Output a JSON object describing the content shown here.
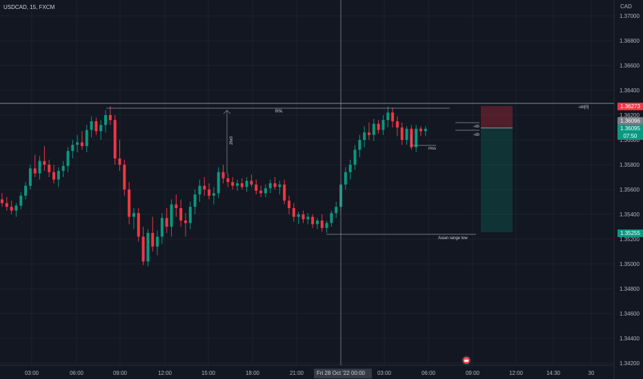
{
  "header": {
    "symbol_line": "USDCAD, 15, FXCM",
    "currency": "CAD"
  },
  "chart_data": {
    "type": "candlestick",
    "title": "USDCAD, 15, FXCM",
    "ylim": [
      1.342,
      1.3712
    ],
    "ylabel": "CAD",
    "y_ticks": [
      "1.37000",
      "1.36800",
      "1.36600",
      "1.36400",
      "1.36200",
      "1.36000",
      "1.35800",
      "1.35600",
      "1.35400",
      "1.35200",
      "1.35000",
      "1.34800",
      "1.34600",
      "1.34400",
      "1.34200"
    ],
    "x_ticks": [
      "03:00",
      "06:00",
      "09:00",
      "12:00",
      "15:00",
      "18:00",
      "21:00",
      "Fri 28 Oct '22",
      "03:00",
      "06:00",
      "09:00",
      "12:00",
      "14:30",
      "30"
    ],
    "price_tags": [
      {
        "label": "1.36273",
        "color": "#f23645"
      },
      {
        "label": "1.36096",
        "color": "#787b86"
      },
      {
        "label": "1.36095",
        "sub": "07:50",
        "color": "#089981"
      },
      {
        "label": "1.35255",
        "color": "#089981"
      }
    ],
    "crosshair_label": "Fri 28 Oct '22  00:00",
    "annotations": [
      "BSL",
      "-ob[0]",
      "-ob",
      "-ob",
      "mss",
      "Asian range low",
      "2hr0"
    ],
    "bullish_color": "#089981",
    "bearish_color": "#f23645",
    "candles_ohlc": [
      [
        1.3552,
        1.3557,
        1.3546,
        1.3549
      ],
      [
        1.3549,
        1.3554,
        1.3543,
        1.3546
      ],
      [
        1.3546,
        1.3551,
        1.354,
        1.3543
      ],
      [
        1.3543,
        1.3549,
        1.3538,
        1.3547
      ],
      [
        1.3547,
        1.3558,
        1.3544,
        1.3555
      ],
      [
        1.3555,
        1.3566,
        1.3552,
        1.3563
      ],
      [
        1.3563,
        1.358,
        1.356,
        1.3577
      ],
      [
        1.3577,
        1.3588,
        1.357,
        1.3573
      ],
      [
        1.3573,
        1.3587,
        1.3568,
        1.3583
      ],
      [
        1.3583,
        1.3595,
        1.3575,
        1.358
      ],
      [
        1.358,
        1.3584,
        1.357,
        1.3574
      ],
      [
        1.3574,
        1.358,
        1.3565,
        1.3568
      ],
      [
        1.3568,
        1.3578,
        1.3562,
        1.3575
      ],
      [
        1.3575,
        1.3583,
        1.357,
        1.3579
      ],
      [
        1.3579,
        1.3594,
        1.3574,
        1.3591
      ],
      [
        1.3591,
        1.36,
        1.3585,
        1.3596
      ],
      [
        1.3596,
        1.3604,
        1.359,
        1.3598
      ],
      [
        1.3598,
        1.3607,
        1.3592,
        1.3595
      ],
      [
        1.3595,
        1.3612,
        1.359,
        1.3608
      ],
      [
        1.3608,
        1.3619,
        1.3602,
        1.3615
      ],
      [
        1.3615,
        1.3618,
        1.3604,
        1.3607
      ],
      [
        1.3607,
        1.3616,
        1.36,
        1.3612
      ],
      [
        1.3612,
        1.3624,
        1.3606,
        1.362
      ],
      [
        1.362,
        1.3627,
        1.3612,
        1.3616
      ],
      [
        1.3616,
        1.362,
        1.358,
        1.3585
      ],
      [
        1.3585,
        1.36,
        1.3575,
        1.358
      ],
      [
        1.358,
        1.3584,
        1.3555,
        1.356
      ],
      [
        1.356,
        1.3566,
        1.3532,
        1.3538
      ],
      [
        1.3538,
        1.3545,
        1.3528,
        1.3541
      ],
      [
        1.3541,
        1.3545,
        1.3518,
        1.3522
      ],
      [
        1.3522,
        1.353,
        1.3499,
        1.3502
      ],
      [
        1.3502,
        1.3528,
        1.3498,
        1.3525
      ],
      [
        1.3525,
        1.3538,
        1.351,
        1.3514
      ],
      [
        1.3514,
        1.3527,
        1.3507,
        1.3522
      ],
      [
        1.3522,
        1.3541,
        1.3516,
        1.3537
      ],
      [
        1.3537,
        1.3545,
        1.3525,
        1.353
      ],
      [
        1.353,
        1.3552,
        1.3522,
        1.3548
      ],
      [
        1.3548,
        1.3556,
        1.3538,
        1.3545
      ],
      [
        1.3545,
        1.3552,
        1.353,
        1.3535
      ],
      [
        1.3535,
        1.3541,
        1.3522,
        1.3533
      ],
      [
        1.3533,
        1.355,
        1.3528,
        1.3546
      ],
      [
        1.3546,
        1.356,
        1.354,
        1.3556
      ],
      [
        1.3556,
        1.3568,
        1.355,
        1.3563
      ],
      [
        1.3563,
        1.357,
        1.3555,
        1.356
      ],
      [
        1.356,
        1.3565,
        1.3552,
        1.3555
      ],
      [
        1.3555,
        1.3562,
        1.3548,
        1.3557
      ],
      [
        1.3557,
        1.3578,
        1.3553,
        1.3574
      ],
      [
        1.3574,
        1.358,
        1.3565,
        1.3569
      ],
      [
        1.3569,
        1.3573,
        1.3562,
        1.3566
      ],
      [
        1.3566,
        1.357,
        1.356,
        1.3563
      ],
      [
        1.3563,
        1.3568,
        1.3559,
        1.3565
      ],
      [
        1.3565,
        1.3569,
        1.356,
        1.3562
      ],
      [
        1.3562,
        1.357,
        1.3558,
        1.3567
      ],
      [
        1.3567,
        1.3572,
        1.3562,
        1.3564
      ],
      [
        1.3564,
        1.3568,
        1.3556,
        1.3559
      ],
      [
        1.3559,
        1.3563,
        1.3554,
        1.3557
      ],
      [
        1.3557,
        1.3564,
        1.3554,
        1.3561
      ],
      [
        1.3561,
        1.3568,
        1.3557,
        1.3565
      ],
      [
        1.3565,
        1.357,
        1.356,
        1.3562
      ],
      [
        1.3562,
        1.3567,
        1.3556,
        1.3564
      ],
      [
        1.3564,
        1.3568,
        1.3548,
        1.3551
      ],
      [
        1.3551,
        1.3555,
        1.354,
        1.3545
      ],
      [
        1.3545,
        1.3549,
        1.3534,
        1.3538
      ],
      [
        1.3538,
        1.3542,
        1.3532,
        1.354
      ],
      [
        1.354,
        1.3543,
        1.3533,
        1.3536
      ],
      [
        1.3536,
        1.3541,
        1.3532,
        1.3538
      ],
      [
        1.3538,
        1.354,
        1.3529,
        1.3532
      ],
      [
        1.3532,
        1.3537,
        1.3528,
        1.3535
      ],
      [
        1.3535,
        1.354,
        1.3526,
        1.3529
      ],
      [
        1.3529,
        1.3535,
        1.3525,
        1.3533
      ],
      [
        1.3533,
        1.3543,
        1.353,
        1.3541
      ],
      [
        1.3541,
        1.355,
        1.3537,
        1.3546
      ],
      [
        1.3546,
        1.3567,
        1.3542,
        1.3564
      ],
      [
        1.3564,
        1.3578,
        1.356,
        1.3574
      ],
      [
        1.3574,
        1.3584,
        1.3568,
        1.358
      ],
      [
        1.358,
        1.3596,
        1.3576,
        1.3592
      ],
      [
        1.3592,
        1.3604,
        1.3586,
        1.36
      ],
      [
        1.36,
        1.3611,
        1.3594,
        1.3606
      ],
      [
        1.3606,
        1.3614,
        1.36,
        1.3604
      ],
      [
        1.3604,
        1.3617,
        1.3599,
        1.3613
      ],
      [
        1.3613,
        1.3616,
        1.3605,
        1.3608
      ],
      [
        1.3608,
        1.362,
        1.3604,
        1.3616
      ],
      [
        1.3616,
        1.3627,
        1.361,
        1.3622
      ],
      [
        1.3622,
        1.3626,
        1.361,
        1.3615
      ],
      [
        1.3615,
        1.3619,
        1.3603,
        1.361
      ],
      [
        1.361,
        1.3614,
        1.3596,
        1.36
      ],
      [
        1.36,
        1.3611,
        1.3596,
        1.3609
      ],
      [
        1.3609,
        1.3612,
        1.3592,
        1.3594
      ],
      [
        1.3594,
        1.3612,
        1.359,
        1.3609
      ],
      [
        1.3609,
        1.3611,
        1.3603,
        1.3607
      ],
      [
        1.3607,
        1.3611,
        1.3603,
        1.3609
      ]
    ]
  }
}
